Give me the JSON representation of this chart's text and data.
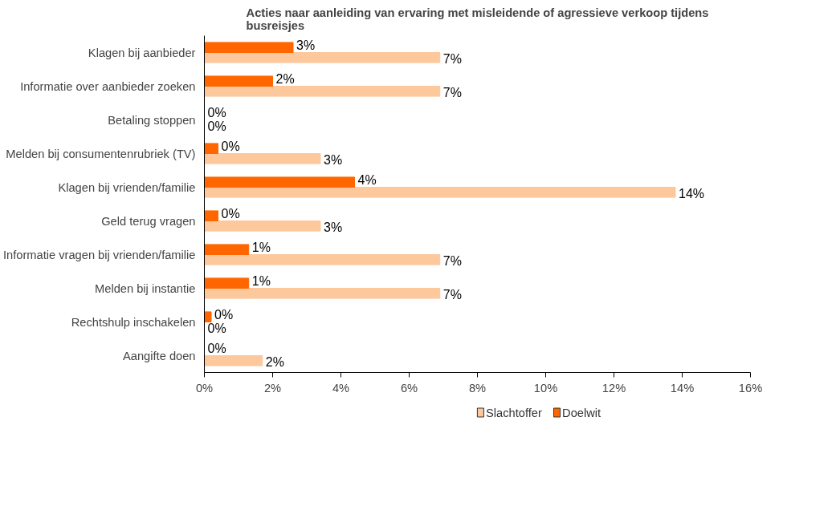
{
  "chart_data": {
    "type": "bar",
    "orientation": "horizontal",
    "title": "Acties naar aanleiding van ervaring met misleidende of agressieve verkoop tijdens busreisjes",
    "categories": [
      "Klagen bij aanbieder",
      "Informatie over aanbieder zoeken",
      "Betaling stoppen",
      "Melden bij consumentenrubriek (TV)",
      "Klagen bij vrienden/familie",
      "Geld terug vragen",
      "Informatie vragen bij vrienden/familie",
      "Melden bij instantie",
      "Rechtshulp inschakelen",
      "Aangifte doen"
    ],
    "series": [
      {
        "name": "Slachtoffer",
        "color": "#fcc89c",
        "values": [
          6.9,
          6.9,
          0,
          3.4,
          13.8,
          3.4,
          6.9,
          6.9,
          0,
          1.7
        ],
        "value_labels": [
          "7%",
          "7%",
          "0%",
          "3%",
          "14%",
          "3%",
          "7%",
          "7%",
          "0%",
          "2%"
        ]
      },
      {
        "name": "Doelwit",
        "color": "#ff6600",
        "values": [
          2.6,
          2.0,
          0,
          0.4,
          4.4,
          0.4,
          1.3,
          1.3,
          0.2,
          0
        ],
        "value_labels": [
          "3%",
          "2%",
          "0%",
          "0%",
          "4%",
          "0%",
          "1%",
          "1%",
          "0%",
          "0%"
        ]
      }
    ],
    "xlim": [
      0,
      16
    ],
    "xticks": [
      {
        "value": 0,
        "label": "0%"
      },
      {
        "value": 2,
        "label": "2%"
      },
      {
        "value": 4,
        "label": "4%"
      },
      {
        "value": 6,
        "label": "6%"
      },
      {
        "value": 8,
        "label": "8%"
      },
      {
        "value": 10,
        "label": "10%"
      },
      {
        "value": 12,
        "label": "12%"
      },
      {
        "value": 14,
        "label": "14%"
      },
      {
        "value": 16,
        "label": "16%"
      }
    ],
    "legend": "bottom",
    "grid": false
  }
}
